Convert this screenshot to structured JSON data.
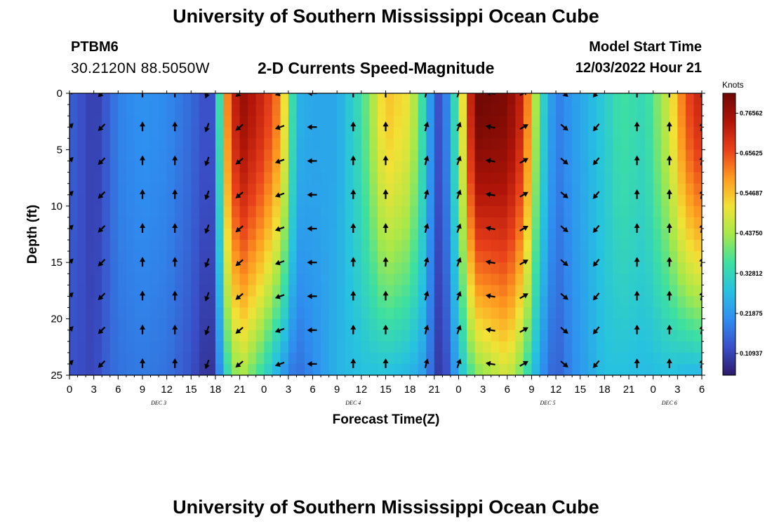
{
  "header": {
    "title": "University of Southern Mississippi Ocean Cube",
    "station": "PTBM6",
    "coords": "30.2120N  88.5050W",
    "subtitle": "2-D Currents Speed-Magnitude",
    "model_start_label": "Model Start Time",
    "model_start_value": "12/03/2022 Hour 21"
  },
  "footer": {
    "title": "University of Southern Mississippi Ocean Cube"
  },
  "chart_data": {
    "type": "heatmap",
    "title": "2-D Currents Speed-Magnitude",
    "xlabel": "Forecast Time(Z)",
    "ylabel": "Depth (ft)",
    "x_ticks": [
      "0",
      "3",
      "6",
      "9",
      "12",
      "15",
      "18",
      "21",
      "0",
      "3",
      "6",
      "9",
      "12",
      "15",
      "18",
      "21",
      "0",
      "3",
      "6",
      "9",
      "12",
      "15",
      "18",
      "21",
      "0",
      "3",
      "6"
    ],
    "y_ticks": [
      "0",
      "5",
      "10",
      "15",
      "20",
      "25"
    ],
    "ylim": [
      0,
      25
    ],
    "x_range_hours": [
      0,
      78
    ],
    "day_labels": [
      {
        "label": "DEC 3",
        "hour": 11
      },
      {
        "label": "DEC 4",
        "hour": 35
      },
      {
        "label": "DEC 5",
        "hour": 59
      },
      {
        "label": "DEC 6",
        "hour": 74
      }
    ],
    "colorbar": {
      "unit": "Knots",
      "min": 0.05,
      "max": 0.82,
      "tick_values": [
        0.765625,
        0.65625,
        0.546875,
        0.4375,
        0.328125,
        0.21875,
        0.109375
      ],
      "tick_labels": [
        "0.76562",
        "0.65625",
        "0.54687",
        "0.43750",
        "0.32812",
        "0.21875",
        "0.10937"
      ],
      "colors": [
        "#2c1a6a",
        "#3a4fc8",
        "#2f8ef0",
        "#27c2e0",
        "#3ee0a0",
        "#a6e84a",
        "#f2e235",
        "#ff9a20",
        "#e8401a",
        "#b01408",
        "#6e0804"
      ]
    },
    "speed_profile_by_hour": [
      {
        "hour": 0,
        "surface": 0.15,
        "bottom": 0.13
      },
      {
        "hour": 2,
        "surface": 0.12,
        "bottom": 0.12
      },
      {
        "hour": 3,
        "surface": 0.1,
        "bottom": 0.11
      },
      {
        "hour": 4,
        "surface": 0.12,
        "bottom": 0.14
      },
      {
        "hour": 6,
        "surface": 0.19,
        "bottom": 0.17
      },
      {
        "hour": 9,
        "surface": 0.21,
        "bottom": 0.18
      },
      {
        "hour": 12,
        "surface": 0.2,
        "bottom": 0.17
      },
      {
        "hour": 15,
        "surface": 0.16,
        "bottom": 0.13
      },
      {
        "hour": 17,
        "surface": 0.12,
        "bottom": 0.08
      },
      {
        "hour": 18,
        "surface": 0.14,
        "bottom": 0.1
      },
      {
        "hour": 19,
        "surface": 0.55,
        "bottom": 0.3
      },
      {
        "hour": 21,
        "surface": 0.78,
        "bottom": 0.45
      },
      {
        "hour": 24,
        "surface": 0.7,
        "bottom": 0.33
      },
      {
        "hour": 26,
        "surface": 0.6,
        "bottom": 0.23
      },
      {
        "hour": 28,
        "surface": 0.26,
        "bottom": 0.16
      },
      {
        "hour": 30,
        "surface": 0.24,
        "bottom": 0.2
      },
      {
        "hour": 33,
        "surface": 0.24,
        "bottom": 0.26
      },
      {
        "hour": 36,
        "surface": 0.35,
        "bottom": 0.28
      },
      {
        "hour": 39,
        "surface": 0.55,
        "bottom": 0.28
      },
      {
        "hour": 42,
        "surface": 0.5,
        "bottom": 0.26
      },
      {
        "hour": 44,
        "surface": 0.3,
        "bottom": 0.22
      },
      {
        "hour": 45,
        "surface": 0.14,
        "bottom": 0.12
      },
      {
        "hour": 46,
        "surface": 0.12,
        "bottom": 0.08
      },
      {
        "hour": 48,
        "surface": 0.4,
        "bottom": 0.26
      },
      {
        "hour": 50,
        "surface": 0.82,
        "bottom": 0.4
      },
      {
        "hour": 54,
        "surface": 0.8,
        "bottom": 0.48
      },
      {
        "hour": 56,
        "surface": 0.7,
        "bottom": 0.38
      },
      {
        "hour": 58,
        "surface": 0.35,
        "bottom": 0.22
      },
      {
        "hour": 60,
        "surface": 0.18,
        "bottom": 0.14
      },
      {
        "hour": 62,
        "surface": 0.22,
        "bottom": 0.2
      },
      {
        "hour": 66,
        "surface": 0.3,
        "bottom": 0.28
      },
      {
        "hour": 68,
        "surface": 0.36,
        "bottom": 0.28
      },
      {
        "hour": 71,
        "surface": 0.33,
        "bottom": 0.27
      },
      {
        "hour": 74,
        "surface": 0.48,
        "bottom": 0.28
      },
      {
        "hour": 76,
        "surface": 0.65,
        "bottom": 0.26
      },
      {
        "hour": 78,
        "surface": 0.72,
        "bottom": 0.26
      }
    ],
    "arrow_columns_hours": [
      0,
      4,
      9,
      13,
      17,
      21,
      26,
      30,
      35,
      39,
      44,
      48,
      52,
      56,
      61,
      65,
      70,
      74,
      78
    ],
    "arrow_rows_depth_ft": [
      0,
      3,
      6,
      9,
      12,
      15,
      18,
      21,
      24
    ],
    "arrow_direction_by_column_deg": [
      45,
      225,
      0,
      0,
      200,
      230,
      250,
      270,
      0,
      0,
      15,
      20,
      280,
      60,
      130,
      220,
      0,
      0,
      10
    ]
  }
}
